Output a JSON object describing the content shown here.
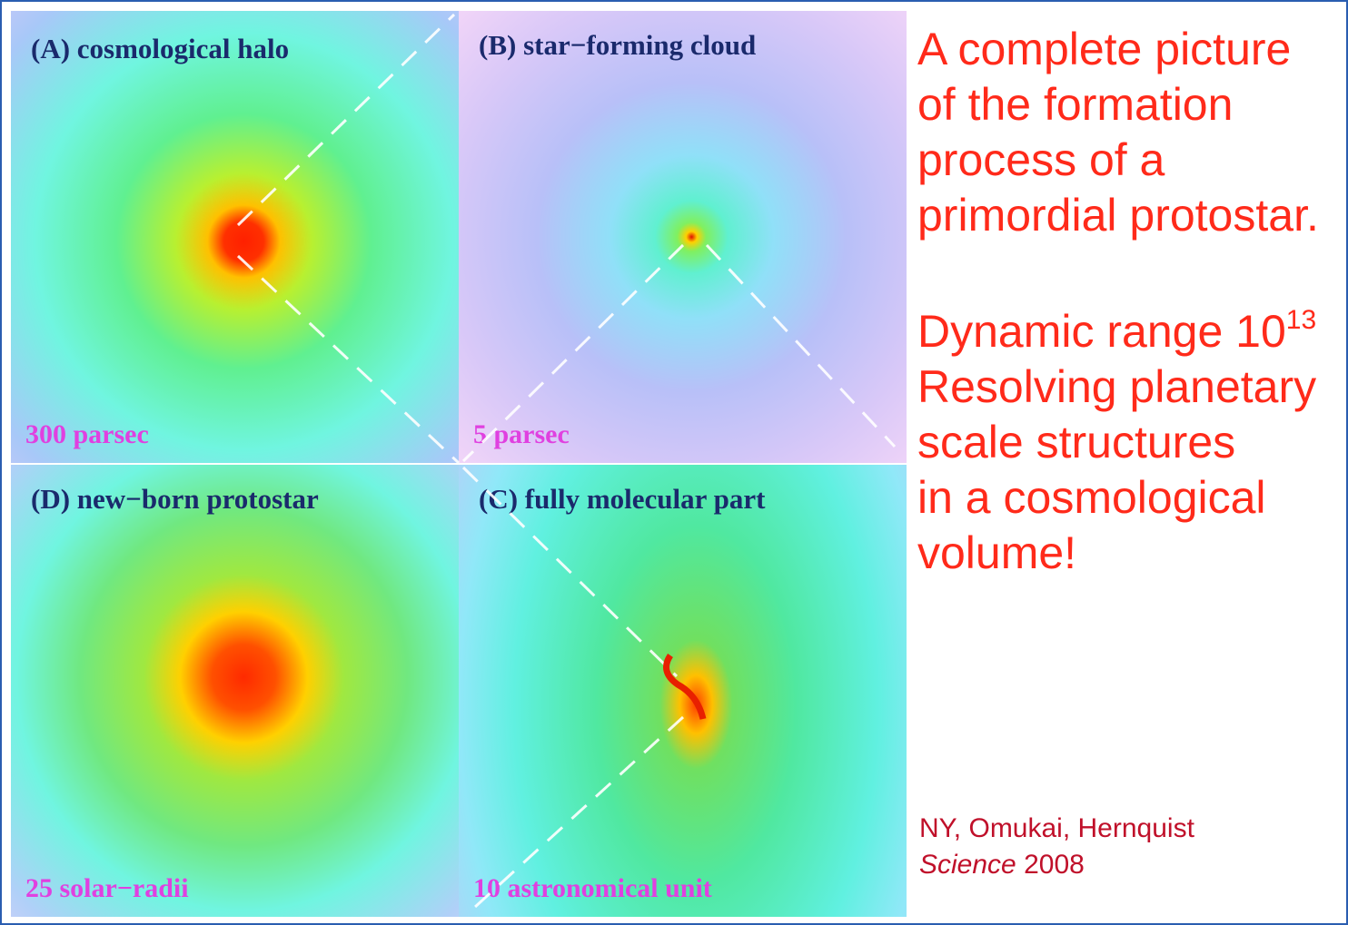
{
  "panels": [
    {
      "title": "(A) cosmological halo",
      "scale": "300 parsec"
    },
    {
      "title": "(B) star−forming cloud",
      "scale": "5 parsec"
    },
    {
      "title": "(D) new−born protostar",
      "scale": "25 solar−radii"
    },
    {
      "title": "(C) fully molecular part",
      "scale": "10 astronomical unit"
    }
  ],
  "headline": [
    "A complete picture",
    "of the formation",
    "process of a",
    "primordial protostar."
  ],
  "dynamic_range": {
    "text": "Dynamic range 10",
    "exponent": "13"
  },
  "body": [
    "Resolving planetary",
    "scale structures",
    "in a cosmological",
    "volume!"
  ],
  "citation": {
    "authors": "NY, Omukai, Hernquist",
    "journal": "Science",
    "year": "2008"
  }
}
